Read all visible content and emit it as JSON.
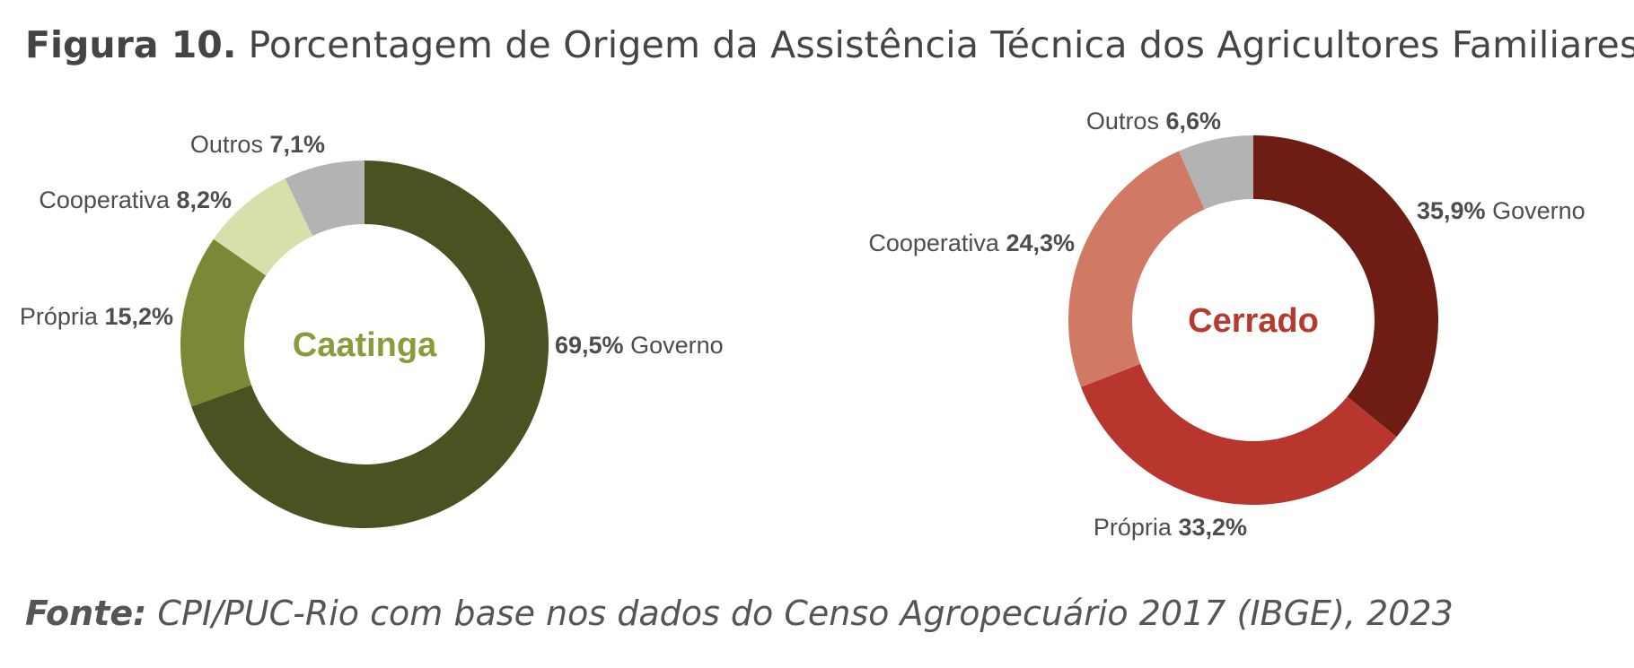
{
  "figure": {
    "number": "Figura 10.",
    "title": "Porcentagem de Origem da Assistência Técnica dos Agricultores Familiares"
  },
  "source": {
    "label": "Fonte:",
    "text": "CPI/PUC-Rio com base nos dados do Censo Agropecuário 2017 (IBGE), 2023"
  },
  "chart_data": [
    {
      "type": "pie",
      "subtype": "donut",
      "title": "Caatinga",
      "center_color": "#8a9a3c",
      "slices": [
        {
          "label": "Governo",
          "value": 69.5,
          "value_label": "69,5%",
          "color": "#4a5222",
          "label_order": "value-first"
        },
        {
          "label": "Própria",
          "value": 15.2,
          "value_label": "15,2%",
          "color": "#7b8836",
          "label_order": "label-first"
        },
        {
          "label": "Cooperativa",
          "value": 8.2,
          "value_label": "8,2%",
          "color": "#d8dfaa",
          "label_order": "label-first"
        },
        {
          "label": "Outros",
          "value": 7.1,
          "value_label": "7,1%",
          "color": "#b3b3b3",
          "label_order": "label-first"
        }
      ]
    },
    {
      "type": "pie",
      "subtype": "donut",
      "title": "Cerrado",
      "center_color": "#b53a2f",
      "slices": [
        {
          "label": "Governo",
          "value": 35.9,
          "value_label": "35,9%",
          "color": "#6d1d13",
          "label_order": "value-first"
        },
        {
          "label": "Própria",
          "value": 33.2,
          "value_label": "33,2%",
          "color": "#b8362d",
          "label_order": "label-first"
        },
        {
          "label": "Cooperativa",
          "value": 24.3,
          "value_label": "24,3%",
          "color": "#d07a66",
          "label_order": "label-first"
        },
        {
          "label": "Outros",
          "value": 6.6,
          "value_label": "6,6%",
          "color": "#b3b3b3",
          "label_order": "label-first"
        }
      ]
    }
  ]
}
